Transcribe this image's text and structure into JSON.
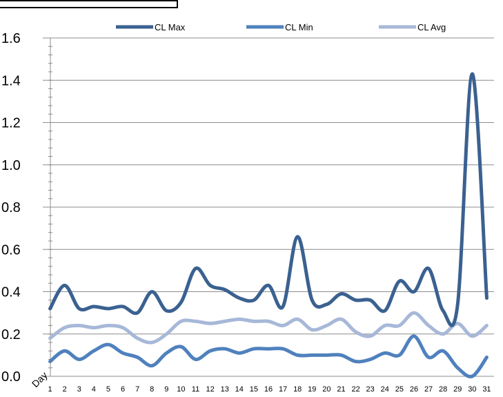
{
  "chart_data": {
    "type": "line",
    "title": "",
    "xlabel": "Day",
    "ylabel": "",
    "ylim": [
      0,
      1.6
    ],
    "yticks": [
      "0.0",
      "0.2",
      "0.4",
      "0.6",
      "0.8",
      "1.0",
      "1.2",
      "1.4",
      "1.6"
    ],
    "categories": [
      "1",
      "2",
      "3",
      "4",
      "5",
      "6",
      "7",
      "8",
      "9",
      "10",
      "11",
      "12",
      "13",
      "14",
      "15",
      "16",
      "17",
      "18",
      "19",
      "20",
      "21",
      "22",
      "23",
      "24",
      "25",
      "26",
      "27",
      "28",
      "29",
      "30",
      "31"
    ],
    "grid": true,
    "legend_position": "top",
    "series": [
      {
        "name": "CL Max",
        "color": "#3a6190",
        "values": [
          0.32,
          0.43,
          0.32,
          0.33,
          0.32,
          0.33,
          0.3,
          0.4,
          0.31,
          0.35,
          0.51,
          0.43,
          0.41,
          0.37,
          0.36,
          0.43,
          0.33,
          0.66,
          0.36,
          0.34,
          0.39,
          0.36,
          0.36,
          0.31,
          0.45,
          0.4,
          0.51,
          0.31,
          0.34,
          1.43,
          0.37
        ]
      },
      {
        "name": "CL Min",
        "color": "#4f81bd",
        "values": [
          0.07,
          0.12,
          0.08,
          0.12,
          0.15,
          0.11,
          0.09,
          0.05,
          0.11,
          0.14,
          0.08,
          0.12,
          0.13,
          0.11,
          0.13,
          0.13,
          0.13,
          0.1,
          0.1,
          0.1,
          0.1,
          0.07,
          0.08,
          0.11,
          0.1,
          0.19,
          0.09,
          0.12,
          0.04,
          0.0,
          0.09
        ]
      },
      {
        "name": "CL Avg",
        "color": "#a7b8d8",
        "values": [
          0.18,
          0.23,
          0.24,
          0.23,
          0.24,
          0.23,
          0.18,
          0.16,
          0.2,
          0.26,
          0.26,
          0.25,
          0.26,
          0.27,
          0.26,
          0.26,
          0.24,
          0.27,
          0.22,
          0.24,
          0.27,
          0.21,
          0.19,
          0.24,
          0.24,
          0.3,
          0.24,
          0.2,
          0.25,
          0.19,
          0.24
        ]
      }
    ]
  }
}
